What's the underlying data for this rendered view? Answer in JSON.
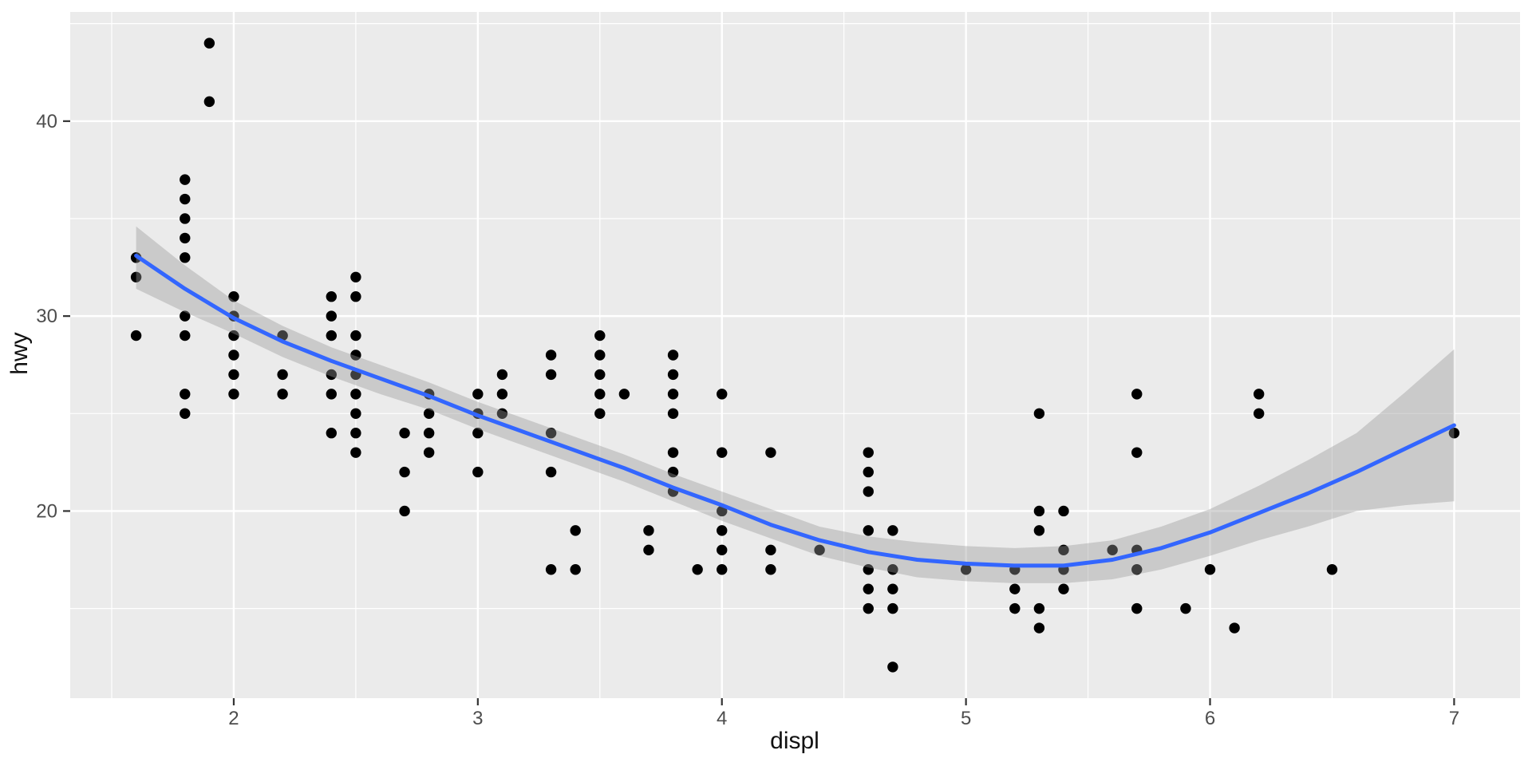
{
  "chart_data": {
    "type": "scatter",
    "title": "",
    "xlabel": "displ",
    "ylabel": "hwy",
    "legend": "none",
    "grid": "on",
    "xlim": [
      1.33,
      7.27
    ],
    "ylim": [
      10.4,
      45.6
    ],
    "x_ticks": [
      2,
      3,
      4,
      5,
      6,
      7
    ],
    "y_ticks": [
      20,
      30,
      40
    ],
    "x_minor_ticks": [
      1.5,
      2.5,
      3.5,
      4.5,
      5.5,
      6.5
    ],
    "y_minor_ticks": [
      15,
      25,
      35,
      45
    ],
    "colors": {
      "page_background": "#FFFFFF",
      "panel_background": "#EBEBEB",
      "gridline": "#FFFFFF",
      "point": "#000000",
      "smooth_line": "#3366FF",
      "ribbon_fill": "#999999",
      "ribbon_alpha": 0.4,
      "tick_label": "#4D4D4D",
      "axis_title": "#111111",
      "tick_mark": "#333333"
    },
    "points": [
      [
        1.6,
        33
      ],
      [
        1.6,
        32
      ],
      [
        1.6,
        29
      ],
      [
        1.8,
        37
      ],
      [
        1.8,
        36
      ],
      [
        1.8,
        35
      ],
      [
        1.8,
        34
      ],
      [
        1.8,
        33
      ],
      [
        1.8,
        30
      ],
      [
        1.8,
        29
      ],
      [
        1.8,
        26
      ],
      [
        1.8,
        25
      ],
      [
        1.9,
        44
      ],
      [
        1.9,
        41
      ],
      [
        2.0,
        31
      ],
      [
        2.0,
        30
      ],
      [
        2.0,
        29
      ],
      [
        2.0,
        28
      ],
      [
        2.0,
        27
      ],
      [
        2.0,
        26
      ],
      [
        2.2,
        29
      ],
      [
        2.2,
        27
      ],
      [
        2.2,
        26
      ],
      [
        2.4,
        31
      ],
      [
        2.4,
        30
      ],
      [
        2.4,
        29
      ],
      [
        2.4,
        27
      ],
      [
        2.4,
        26
      ],
      [
        2.4,
        24
      ],
      [
        2.5,
        32
      ],
      [
        2.5,
        31
      ],
      [
        2.5,
        29
      ],
      [
        2.5,
        28
      ],
      [
        2.5,
        27
      ],
      [
        2.5,
        26
      ],
      [
        2.5,
        25
      ],
      [
        2.5,
        24
      ],
      [
        2.5,
        23
      ],
      [
        2.7,
        24
      ],
      [
        2.7,
        22
      ],
      [
        2.7,
        20
      ],
      [
        2.8,
        26
      ],
      [
        2.8,
        25
      ],
      [
        2.8,
        24
      ],
      [
        2.8,
        23
      ],
      [
        3.0,
        26
      ],
      [
        3.0,
        25
      ],
      [
        3.0,
        24
      ],
      [
        3.0,
        22
      ],
      [
        3.1,
        27
      ],
      [
        3.1,
        26
      ],
      [
        3.1,
        25
      ],
      [
        3.3,
        28
      ],
      [
        3.3,
        27
      ],
      [
        3.3,
        24
      ],
      [
        3.3,
        22
      ],
      [
        3.3,
        17
      ],
      [
        3.4,
        19
      ],
      [
        3.4,
        17
      ],
      [
        3.5,
        29
      ],
      [
        3.5,
        28
      ],
      [
        3.5,
        27
      ],
      [
        3.5,
        26
      ],
      [
        3.5,
        25
      ],
      [
        3.6,
        26
      ],
      [
        3.7,
        19
      ],
      [
        3.7,
        18
      ],
      [
        3.8,
        28
      ],
      [
        3.8,
        27
      ],
      [
        3.8,
        26
      ],
      [
        3.8,
        25
      ],
      [
        3.8,
        23
      ],
      [
        3.8,
        22
      ],
      [
        3.8,
        21
      ],
      [
        3.9,
        17
      ],
      [
        4.0,
        26
      ],
      [
        4.0,
        23
      ],
      [
        4.0,
        20
      ],
      [
        4.0,
        19
      ],
      [
        4.0,
        18
      ],
      [
        4.0,
        17
      ],
      [
        4.2,
        23
      ],
      [
        4.2,
        18
      ],
      [
        4.2,
        17
      ],
      [
        4.4,
        18
      ],
      [
        4.6,
        23
      ],
      [
        4.6,
        22
      ],
      [
        4.6,
        21
      ],
      [
        4.6,
        19
      ],
      [
        4.6,
        17
      ],
      [
        4.6,
        16
      ],
      [
        4.6,
        15
      ],
      [
        4.7,
        19
      ],
      [
        4.7,
        17
      ],
      [
        4.7,
        16
      ],
      [
        4.7,
        15
      ],
      [
        4.7,
        12
      ],
      [
        5.0,
        17
      ],
      [
        5.2,
        17
      ],
      [
        5.2,
        16
      ],
      [
        5.2,
        15
      ],
      [
        5.3,
        25
      ],
      [
        5.3,
        20
      ],
      [
        5.3,
        19
      ],
      [
        5.3,
        15
      ],
      [
        5.3,
        14
      ],
      [
        5.4,
        20
      ],
      [
        5.4,
        18
      ],
      [
        5.4,
        17
      ],
      [
        5.4,
        16
      ],
      [
        5.6,
        18
      ],
      [
        5.7,
        26
      ],
      [
        5.7,
        23
      ],
      [
        5.7,
        18
      ],
      [
        5.7,
        17
      ],
      [
        5.7,
        15
      ],
      [
        5.9,
        15
      ],
      [
        6.0,
        17
      ],
      [
        6.1,
        14
      ],
      [
        6.2,
        26
      ],
      [
        6.2,
        25
      ],
      [
        6.5,
        17
      ],
      [
        7.0,
        24
      ]
    ],
    "smooth_line": [
      [
        1.6,
        33.1
      ],
      [
        1.8,
        31.4
      ],
      [
        2.0,
        29.9
      ],
      [
        2.2,
        28.7
      ],
      [
        2.4,
        27.7
      ],
      [
        2.6,
        26.8
      ],
      [
        2.8,
        25.9
      ],
      [
        3.0,
        24.9
      ],
      [
        3.2,
        24.0
      ],
      [
        3.4,
        23.1
      ],
      [
        3.6,
        22.2
      ],
      [
        3.8,
        21.2
      ],
      [
        4.0,
        20.3
      ],
      [
        4.2,
        19.3
      ],
      [
        4.4,
        18.5
      ],
      [
        4.6,
        17.9
      ],
      [
        4.8,
        17.5
      ],
      [
        5.0,
        17.3
      ],
      [
        5.2,
        17.2
      ],
      [
        5.4,
        17.2
      ],
      [
        5.6,
        17.5
      ],
      [
        5.8,
        18.1
      ],
      [
        6.0,
        18.9
      ],
      [
        6.2,
        19.9
      ],
      [
        6.4,
        20.9
      ],
      [
        6.6,
        22.0
      ],
      [
        6.8,
        23.2
      ],
      [
        7.0,
        24.4
      ]
    ],
    "ribbon": [
      [
        1.6,
        31.4,
        34.6
      ],
      [
        1.8,
        30.2,
        32.6
      ],
      [
        2.0,
        29.1,
        30.8
      ],
      [
        2.2,
        27.9,
        29.5
      ],
      [
        2.4,
        26.9,
        28.4
      ],
      [
        2.6,
        26.0,
        27.5
      ],
      [
        2.8,
        25.2,
        26.6
      ],
      [
        3.0,
        24.2,
        25.6
      ],
      [
        3.2,
        23.3,
        24.7
      ],
      [
        3.4,
        22.4,
        23.8
      ],
      [
        3.6,
        21.5,
        22.9
      ],
      [
        3.8,
        20.5,
        21.9
      ],
      [
        4.0,
        19.5,
        21.0
      ],
      [
        4.2,
        18.6,
        20.1
      ],
      [
        4.4,
        17.7,
        19.2
      ],
      [
        4.6,
        17.1,
        18.7
      ],
      [
        4.8,
        16.6,
        18.4
      ],
      [
        5.0,
        16.4,
        18.2
      ],
      [
        5.2,
        16.3,
        18.1
      ],
      [
        5.4,
        16.3,
        18.2
      ],
      [
        5.6,
        16.5,
        18.5
      ],
      [
        5.8,
        17.0,
        19.2
      ],
      [
        6.0,
        17.7,
        20.1
      ],
      [
        6.2,
        18.5,
        21.3
      ],
      [
        6.4,
        19.2,
        22.6
      ],
      [
        6.6,
        20.0,
        24.0
      ],
      [
        6.8,
        20.3,
        26.1
      ],
      [
        7.0,
        20.5,
        28.3
      ]
    ]
  }
}
